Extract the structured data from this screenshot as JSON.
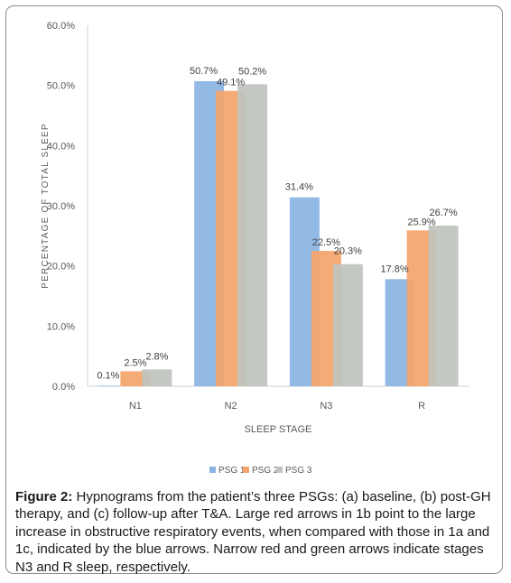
{
  "chart_data": {
    "type": "bar",
    "categories": [
      "N1",
      "N2",
      "N3",
      "R"
    ],
    "series": [
      {
        "name": "PSG 1",
        "values": [
          0.1,
          50.7,
          31.4,
          17.8
        ],
        "labels": [
          "0.1%",
          "50.7%",
          "31.4%",
          "17.8%"
        ],
        "color": "#8ab4e3"
      },
      {
        "name": "PSG 2",
        "values": [
          2.5,
          49.1,
          22.5,
          25.9
        ],
        "labels": [
          "2.5%",
          "49.1%",
          "22.5%",
          "25.9%"
        ],
        "color": "#f4a46a"
      },
      {
        "name": "PSG 3",
        "values": [
          2.8,
          50.2,
          20.3,
          26.7
        ],
        "labels": [
          "2.8%",
          "50.2%",
          "20.3%",
          "26.7%"
        ],
        "color": "#bfc3be"
      }
    ],
    "y_ticks": [
      "0.0%",
      "10.0%",
      "20.0%",
      "30.0%",
      "40.0%",
      "50.0%",
      "60.0%"
    ],
    "ylim": [
      0,
      60
    ],
    "xlabel": "SLEEP STAGE",
    "ylabel": "PERCENTAGE OF TOTAL SLEEP",
    "legend_position": "bottom",
    "grid": false
  },
  "caption": {
    "label": "Figure 2:",
    "text": " Hypnograms from the patient’s three PSGs: (a) baseline, (b) post-GH therapy, and (c) follow-up after T&A. Large red arrows in 1b point to the large increase in obstructive respiratory events, when compared with those in 1a and 1c, indicated by the blue arrows. Narrow red and green arrows indicate stages N3 and R sleep, respectively."
  }
}
